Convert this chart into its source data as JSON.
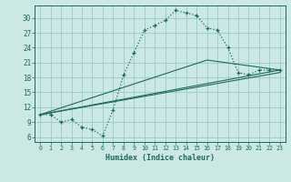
{
  "xlabel": "Humidex (Indice chaleur)",
  "bg_color": "#cce8e4",
  "grid_color": "#99ccc6",
  "line_color": "#1a6b5a",
  "x_ticks": [
    0,
    1,
    2,
    3,
    4,
    5,
    6,
    7,
    8,
    9,
    10,
    11,
    12,
    13,
    14,
    15,
    16,
    17,
    18,
    19,
    20,
    21,
    22,
    23
  ],
  "y_ticks": [
    6,
    9,
    12,
    15,
    18,
    21,
    24,
    27,
    30
  ],
  "ylim": [
    5.0,
    32.5
  ],
  "xlim": [
    -0.5,
    23.5
  ],
  "main_line": {
    "x": [
      0,
      1,
      2,
      3,
      4,
      5,
      6,
      7,
      8,
      9,
      10,
      11,
      12,
      13,
      14,
      15,
      16,
      17,
      18,
      19,
      20,
      21,
      22,
      23
    ],
    "y": [
      10.5,
      10.5,
      9.0,
      9.5,
      8.0,
      7.5,
      6.2,
      11.5,
      18.5,
      23.0,
      27.5,
      28.5,
      29.5,
      31.5,
      31.0,
      30.5,
      28.0,
      27.5,
      24.0,
      19.0,
      18.5,
      19.5,
      19.5,
      19.5
    ]
  },
  "line2": {
    "x": [
      0,
      23
    ],
    "y": [
      10.5,
      19.5
    ]
  },
  "line3": {
    "x": [
      0,
      23
    ],
    "y": [
      10.5,
      19.0
    ]
  },
  "line4": {
    "x": [
      0,
      16,
      23
    ],
    "y": [
      10.5,
      21.5,
      19.5
    ]
  }
}
